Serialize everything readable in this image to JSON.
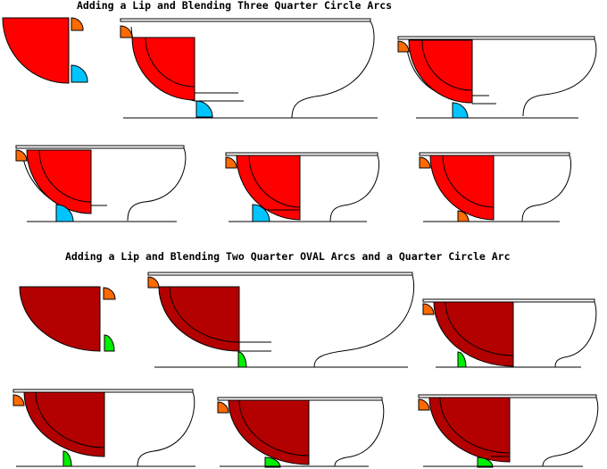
{
  "titles": {
    "circle_arcs": "Adding a Lip and Blending Three Quarter Circle Arcs",
    "oval_arcs": "Adding a Lip and Blending Two Quarter OVAL Arcs and a Quarter Circle Arc"
  },
  "colors": {
    "circle_fill": "#ff0000",
    "oval_fill": "#b30000",
    "lip_arc": "#ff6a00",
    "circle_foot_arc": "#00c4ff",
    "oval_foot_arc": "#00ee00",
    "outline": "#000000",
    "background": "#ffffff"
  }
}
